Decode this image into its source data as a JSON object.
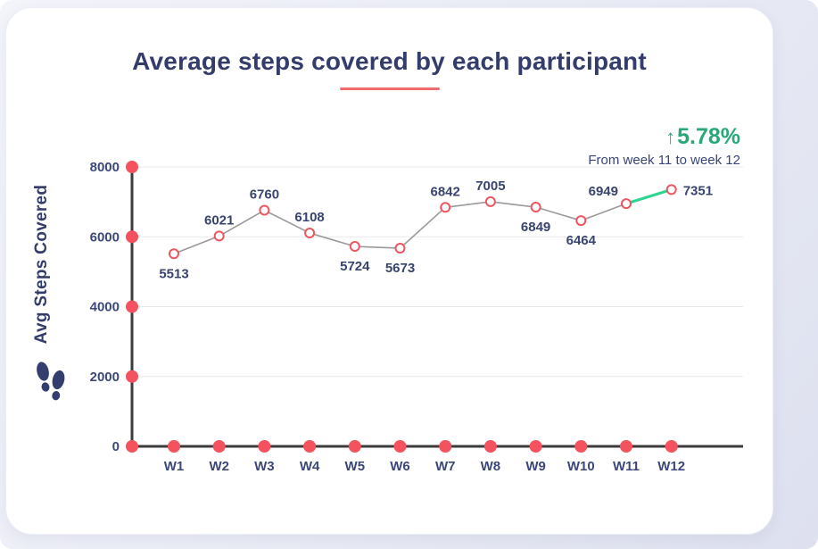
{
  "page": {
    "title": "Average steps covered by each participant",
    "delta": {
      "arrow": "↑",
      "value": "5.78%",
      "caption": "From week 11 to week 12"
    },
    "y_axis_label": "Avg Steps Covered"
  },
  "colors": {
    "title": "#333c6b",
    "underline": "#f26a6a",
    "delta_green_text": "#27a877",
    "axis": "#3b3b3b",
    "grid": "#e8e8e8",
    "tick_label": "#3c477a",
    "axis_dot": "#f4525e",
    "point_stroke": "#ef5560",
    "series_line": "#9a9a9a",
    "highlight_line": "#2ed592",
    "value_label": "#39446f",
    "card_bg": "#ffffff",
    "page_bg": "#e6e8f4"
  },
  "chart_data": {
    "type": "line",
    "title": "Average steps covered by each participant",
    "xlabel": "",
    "ylabel": "Avg Steps Covered",
    "categories": [
      "W1",
      "W2",
      "W3",
      "W4",
      "W5",
      "W6",
      "W7",
      "W8",
      "W9",
      "W10",
      "W11",
      "W12"
    ],
    "values": [
      5513,
      6021,
      6760,
      6108,
      5724,
      5673,
      6842,
      7005,
      6849,
      6464,
      6949,
      7351
    ],
    "label_positions": [
      "below",
      "above",
      "above",
      "above",
      "below",
      "below",
      "above",
      "above",
      "below",
      "below",
      "above-left",
      "right"
    ],
    "y_ticks": [
      0,
      2000,
      4000,
      6000,
      8000
    ],
    "ylim": [
      0,
      8000
    ],
    "grid": true,
    "legend_position": "none",
    "marker_style": "open-circle",
    "axis_marker_style": "filled-circle",
    "highlight_segment": {
      "from_index": 10,
      "to_index": 11,
      "meaning": "increase from week 11 to week 12"
    },
    "annotation": {
      "arrow": "↑",
      "value": "5.78%",
      "caption": "From week 11 to week 12"
    }
  }
}
